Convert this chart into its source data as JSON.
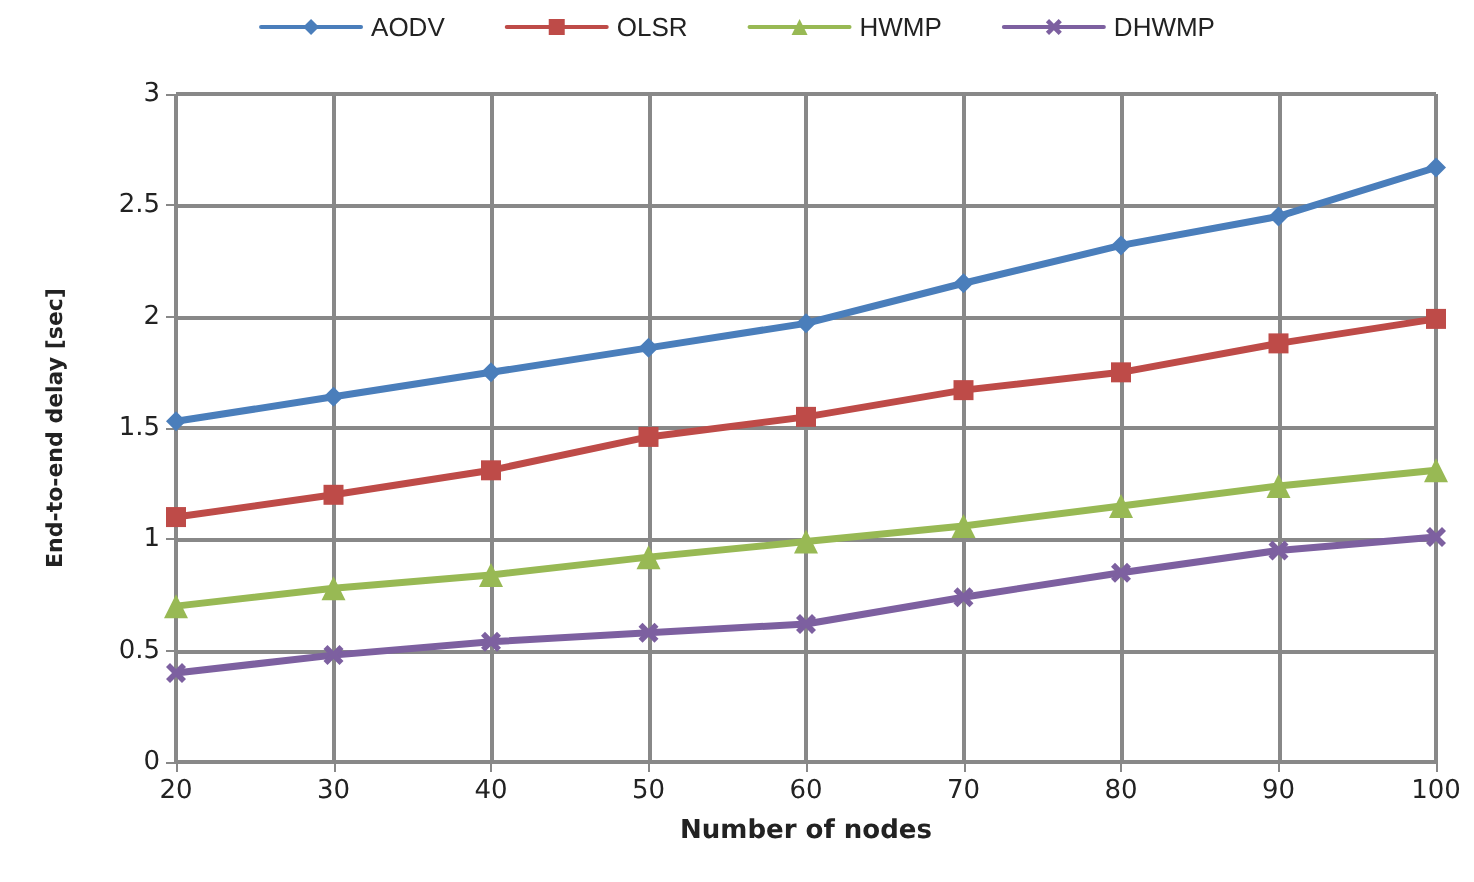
{
  "chart_data": {
    "type": "line",
    "xlabel": "Number of nodes",
    "ylabel": "End-to-end delay [sec]",
    "x": [
      20,
      30,
      40,
      50,
      60,
      70,
      80,
      90,
      100
    ],
    "xlim": [
      20,
      100
    ],
    "xticks": [
      20,
      30,
      40,
      50,
      60,
      70,
      80,
      90,
      100
    ],
    "ylim": [
      0,
      3
    ],
    "yticks": [
      0,
      0.5,
      1,
      1.5,
      2,
      2.5,
      3
    ],
    "grid": true,
    "legend": "top",
    "line_style": "solid",
    "series": [
      {
        "name": "AODV",
        "color": "#4a7ebb",
        "marker": "diamond",
        "values": [
          1.53,
          1.64,
          1.75,
          1.86,
          1.97,
          2.15,
          2.32,
          2.45,
          2.67
        ]
      },
      {
        "name": "OLSR",
        "color": "#be4b48",
        "marker": "square",
        "values": [
          1.1,
          1.2,
          1.31,
          1.46,
          1.55,
          1.67,
          1.75,
          1.88,
          1.99
        ]
      },
      {
        "name": "HWMP",
        "color": "#98b954",
        "marker": "triangle",
        "values": [
          0.7,
          0.78,
          0.84,
          0.92,
          0.99,
          1.06,
          1.15,
          1.24,
          1.31
        ]
      },
      {
        "name": "DHWMP",
        "color": "#7d60a0",
        "marker": "cross",
        "values": [
          0.4,
          0.48,
          0.54,
          0.58,
          0.62,
          0.74,
          0.85,
          0.95,
          1.01
        ]
      }
    ]
  }
}
